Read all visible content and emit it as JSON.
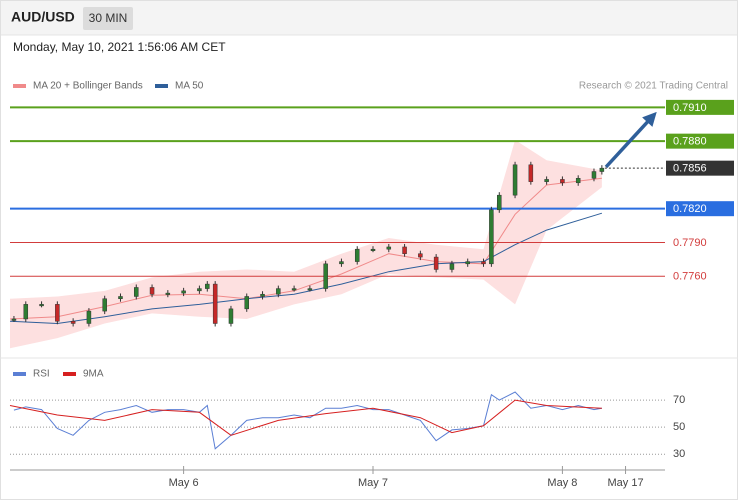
{
  "header": {
    "symbol": "AUD/USD",
    "timeframe": "30 MIN",
    "timestamp": "Monday, May 10, 2021 1:56:06 AM CET"
  },
  "chart_data": [
    {
      "type": "candlestick",
      "credit": "Research © 2021 Trading Central",
      "up_color": "#2e7d32",
      "down_color": "#c62828",
      "x": [
        2.5,
        4,
        6,
        8,
        10,
        12,
        14,
        16,
        18,
        20,
        22,
        24,
        26,
        27,
        28,
        30,
        32,
        34,
        36,
        38,
        40,
        42,
        44,
        46,
        48,
        50,
        52,
        54,
        56,
        58,
        60,
        62,
        63,
        64,
        66,
        68,
        70,
        72,
        74,
        76,
        77
      ],
      "values": [
        0.7722,
        0.7735,
        0.7735,
        0.772,
        0.7718,
        0.7729,
        0.774,
        0.7742,
        0.775,
        0.7744,
        0.7745,
        0.7747,
        0.7749,
        0.7753,
        0.7718,
        0.7731,
        0.7742,
        0.7744,
        0.7749,
        0.7749,
        0.7749,
        0.7771,
        0.7773,
        0.7784,
        0.7784,
        0.7786,
        0.778,
        0.7777,
        0.7766,
        0.7771,
        0.7773,
        0.7771,
        0.7819,
        0.7832,
        0.7859,
        0.7844,
        0.7846,
        0.7843,
        0.7847,
        0.7853,
        0.7856
      ],
      "overlays": [
        {
          "name": "MA 20 + Bollinger Bands",
          "color": "#f08a8a",
          "band_color": "#fde0e0",
          "x": [
            2,
            8,
            14,
            20,
            26,
            32,
            38,
            44,
            50,
            56,
            62,
            66,
            70,
            77
          ],
          "values": [
            0.7722,
            0.7724,
            0.7733,
            0.7743,
            0.7744,
            0.774,
            0.7747,
            0.7762,
            0.778,
            0.7773,
            0.7771,
            0.7815,
            0.7841,
            0.7847
          ],
          "upper": [
            0.774,
            0.7742,
            0.7747,
            0.7759,
            0.7764,
            0.7766,
            0.7764,
            0.778,
            0.7794,
            0.7788,
            0.7784,
            0.7881,
            0.7863,
            0.7854
          ],
          "lower": [
            0.7696,
            0.7705,
            0.7718,
            0.7727,
            0.7724,
            0.7722,
            0.7735,
            0.7744,
            0.7762,
            0.7759,
            0.7757,
            0.7735,
            0.7801,
            0.7839
          ]
        },
        {
          "name": "MA 50",
          "color": "#2f5f9a",
          "x": [
            2,
            8,
            14,
            20,
            26,
            32,
            38,
            44,
            50,
            56,
            62,
            66,
            70,
            77
          ],
          "values": [
            0.772,
            0.7718,
            0.7724,
            0.7731,
            0.7735,
            0.774,
            0.7744,
            0.7753,
            0.7764,
            0.7771,
            0.7773,
            0.7788,
            0.7801,
            0.7816
          ]
        }
      ],
      "levels": [
        {
          "value": 0.791,
          "label": "0.7910",
          "color": "#5aa11c",
          "style": "box"
        },
        {
          "value": 0.788,
          "label": "0.7880",
          "color": "#5aa11c",
          "style": "box"
        },
        {
          "value": 0.7856,
          "label": "0.7856",
          "color": "#333333",
          "style": "current"
        },
        {
          "value": 0.782,
          "label": "0.7820",
          "color": "#2a6ee0",
          "style": "box"
        },
        {
          "value": 0.779,
          "label": "0.7790",
          "color": "#d23c3c",
          "style": "text"
        },
        {
          "value": 0.776,
          "label": "0.7760",
          "color": "#d23c3c",
          "style": "text"
        }
      ],
      "xlim": [
        2,
        85
      ],
      "ylim": [
        0.769,
        0.7921
      ]
    },
    {
      "type": "line",
      "series": [
        {
          "name": "RSI",
          "color": "#5b7fd4",
          "x": [
            2.5,
            4,
            6,
            8,
            10,
            12,
            14,
            16,
            18,
            20,
            22,
            24,
            26,
            27,
            28,
            30,
            32,
            34,
            36,
            38,
            40,
            42,
            44,
            46,
            48,
            50,
            52,
            54,
            56,
            58,
            60,
            62,
            63,
            64,
            66,
            68,
            70,
            72,
            74,
            76,
            77
          ],
          "values": [
            62.6,
            65,
            63,
            49,
            44,
            55,
            61,
            63,
            66,
            61,
            63,
            63,
            61,
            66,
            34,
            44,
            55,
            57,
            57,
            59,
            57,
            64,
            64,
            66,
            63,
            63,
            59,
            55,
            40,
            48,
            49,
            51,
            74,
            70,
            76,
            64,
            66,
            63,
            66,
            63,
            64
          ]
        },
        {
          "name": "9MA",
          "color": "#d62020",
          "x": [
            2,
            8,
            14,
            20,
            26,
            30,
            36,
            42,
            48,
            54,
            58,
            62,
            66,
            70,
            77
          ],
          "values": [
            66,
            59,
            55,
            63,
            61,
            44,
            55,
            60,
            64,
            57,
            46,
            51,
            70,
            66,
            64
          ]
        }
      ],
      "xlim": [
        2,
        85
      ],
      "ylim": [
        22,
        96
      ],
      "yticks": [
        30,
        50,
        70
      ],
      "xticks": [
        {
          "value": 24,
          "label": "May 6"
        },
        {
          "value": 48,
          "label": "May 7"
        },
        {
          "value": 72,
          "label": "May 8"
        },
        {
          "value": 80,
          "label": "May 17"
        }
      ]
    }
  ]
}
